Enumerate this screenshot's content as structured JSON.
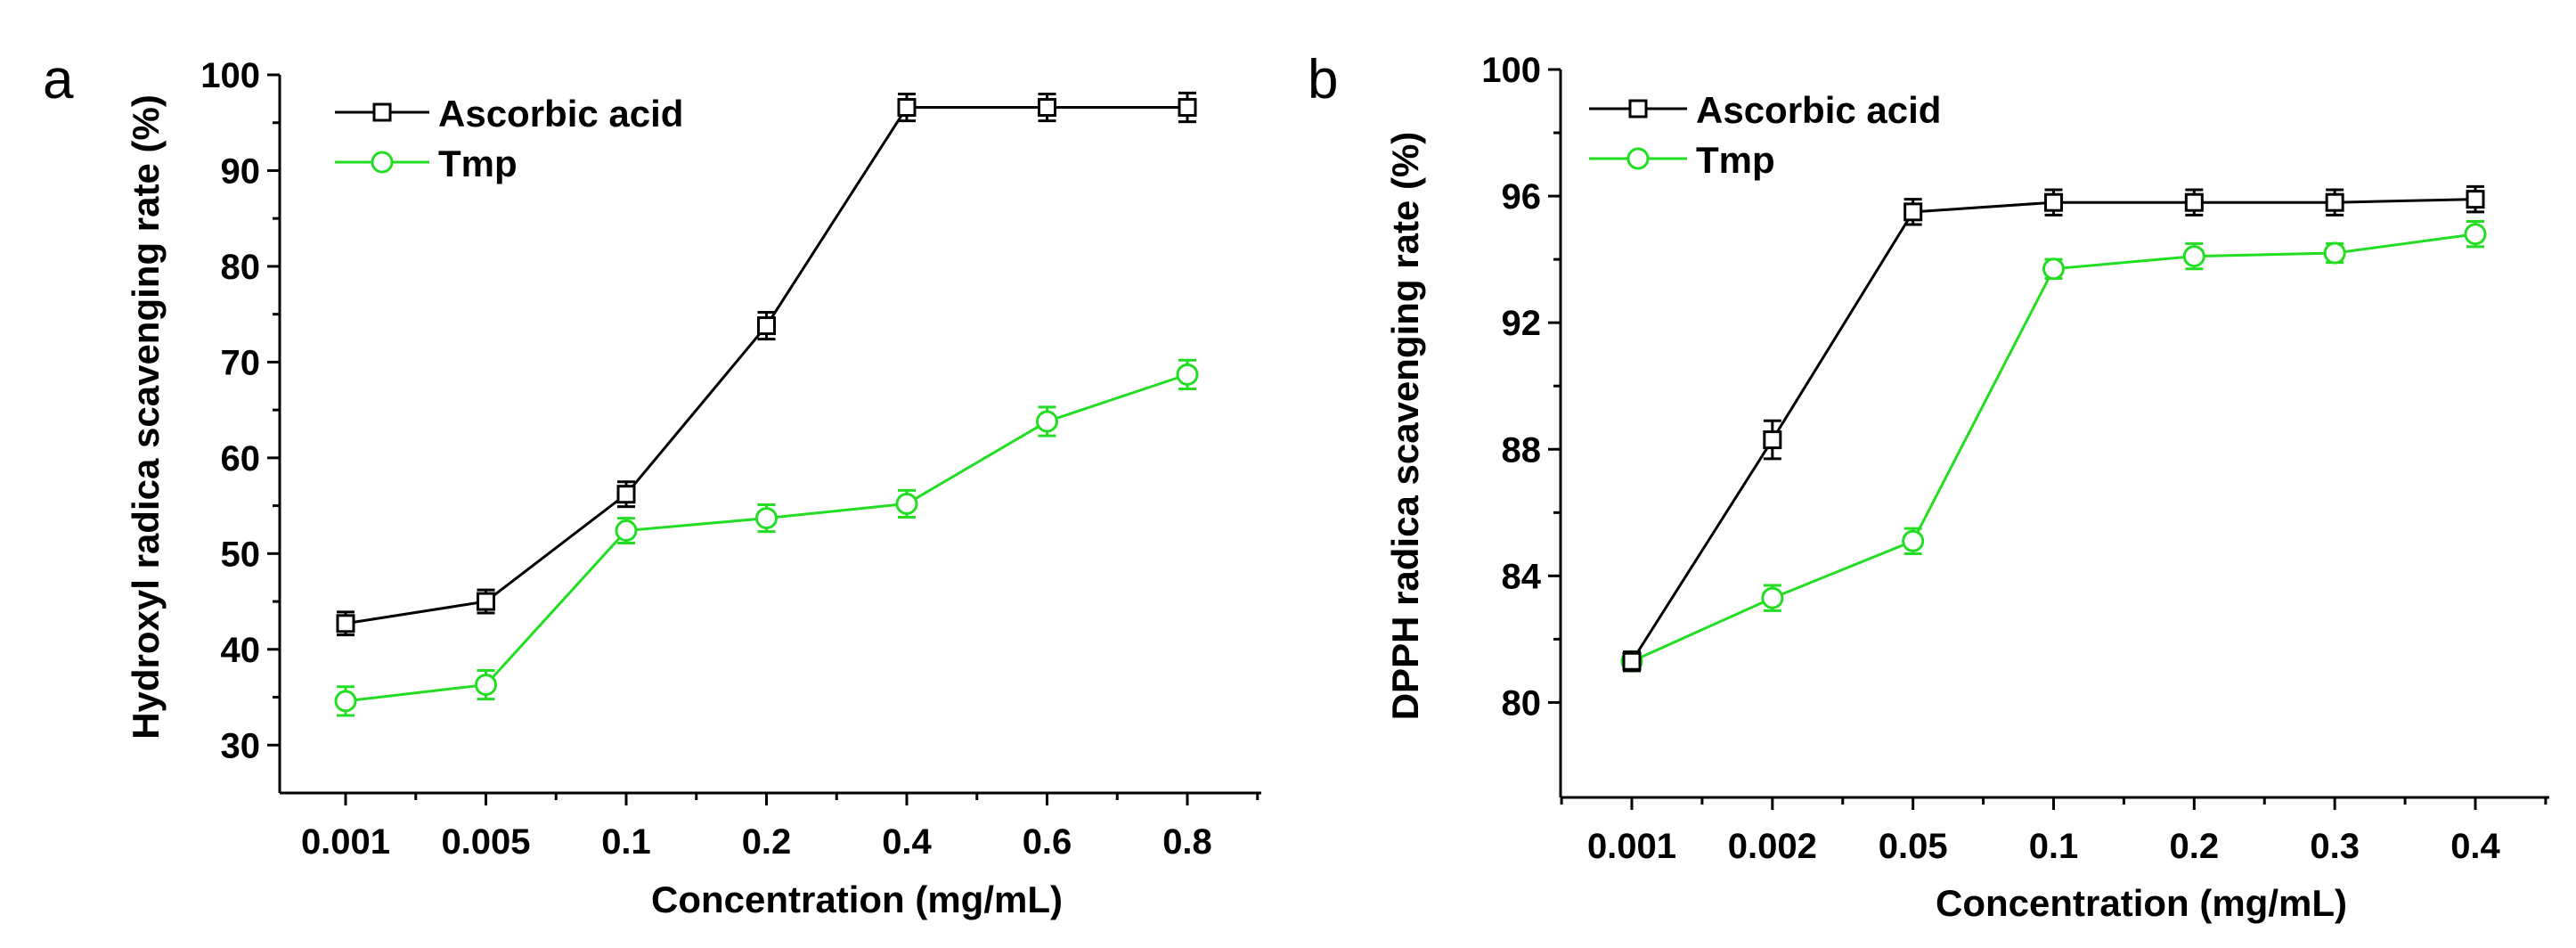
{
  "chart_data": [
    {
      "panel_label": "a",
      "type": "line",
      "title": "",
      "xlabel": "Concentration (mg/mL)",
      "ylabel": "Hydroxyl radica scavenging rate (%)",
      "categories": [
        "0.001",
        "0.005",
        "0.1",
        "0.2",
        "0.4",
        "0.6",
        "0.8"
      ],
      "ylim": [
        25,
        100
      ],
      "yticks": [
        30,
        40,
        50,
        60,
        70,
        80,
        90,
        100
      ],
      "grid": false,
      "legend_position": "top-left",
      "series": [
        {
          "name": "Ascorbic acid",
          "color": "#000000",
          "marker": "square",
          "values": [
            42.7,
            45.0,
            56.2,
            73.8,
            96.6,
            96.6,
            96.6
          ],
          "errors": [
            1.2,
            1.2,
            1.3,
            1.4,
            1.4,
            1.4,
            1.5
          ]
        },
        {
          "name": "Tmp",
          "color": "#22dd22",
          "marker": "circle",
          "values": [
            34.6,
            36.3,
            52.4,
            53.7,
            55.2,
            63.8,
            68.7
          ],
          "errors": [
            1.5,
            1.5,
            1.3,
            1.4,
            1.4,
            1.5,
            1.5
          ]
        }
      ]
    },
    {
      "panel_label": "b",
      "type": "line",
      "title": "",
      "xlabel": "Concentration (mg/mL)",
      "ylabel": "DPPH radica scavenging rate (%)",
      "categories": [
        "0.001",
        "0.002",
        "0.05",
        "0.1",
        "0.2",
        "0.3",
        "0.4"
      ],
      "ylim": [
        77,
        100
      ],
      "yticks": [
        80,
        84,
        88,
        92,
        96,
        100
      ],
      "grid": false,
      "legend_position": "top-left",
      "series": [
        {
          "name": "Ascorbic acid",
          "color": "#000000",
          "marker": "square",
          "values": [
            81.3,
            88.3,
            95.5,
            95.8,
            95.8,
            95.8,
            95.9
          ],
          "errors": [
            0.3,
            0.6,
            0.4,
            0.4,
            0.4,
            0.4,
            0.4
          ]
        },
        {
          "name": "Tmp",
          "color": "#22dd22",
          "marker": "circle",
          "values": [
            81.3,
            83.3,
            85.1,
            93.7,
            94.1,
            94.2,
            94.8
          ],
          "errors": [
            0.3,
            0.4,
            0.4,
            0.3,
            0.4,
            0.3,
            0.4
          ]
        }
      ]
    }
  ]
}
